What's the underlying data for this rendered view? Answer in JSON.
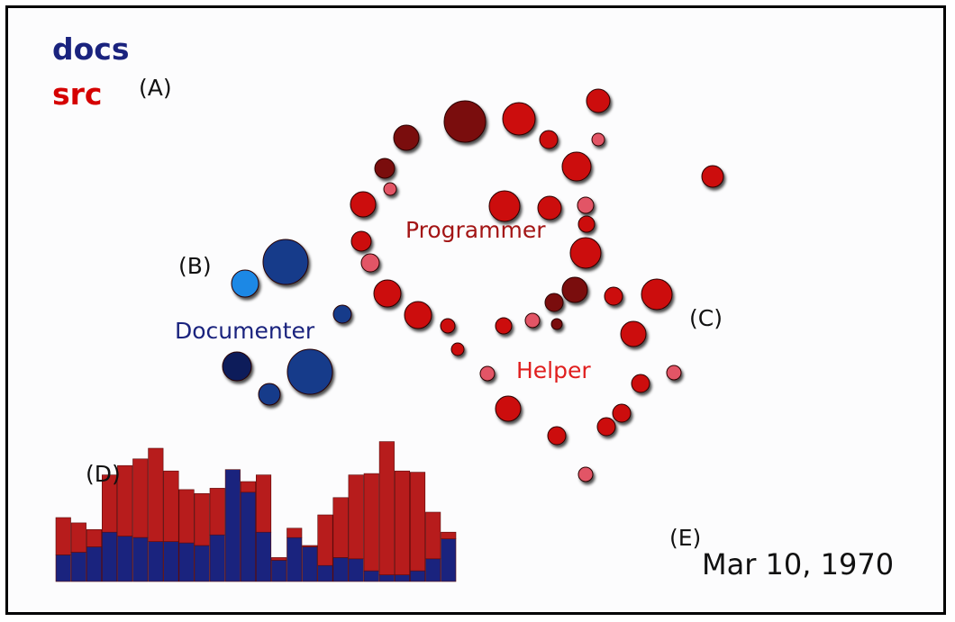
{
  "legend": {
    "items": [
      {
        "label": "docs",
        "color": "#1a237e"
      },
      {
        "label": "src",
        "color": "#d50000"
      }
    ]
  },
  "markers": {
    "a": "(A)",
    "b": "(B)",
    "c": "(C)",
    "d": "(D)",
    "e": "(E)"
  },
  "clusters": {
    "programmer": {
      "label": "Programmer",
      "color": "#a31515"
    },
    "documenter": {
      "label": "Documenter",
      "color": "#1a237e"
    },
    "helper": {
      "label": "Helper",
      "color": "#e01e1e"
    }
  },
  "date": "Mar 10, 1970",
  "colors": {
    "src": "#cc1111",
    "src_dark": "#7a0f0f",
    "src_light": "#e25566",
    "docs": "#123a8a",
    "docs_dark": "#0a1f5a",
    "docs_light": "#1e88e5",
    "bar_src": "#b71c1c",
    "bar_docs": "#1a237e"
  },
  "chart_data": {
    "type": "bar",
    "stacked": true,
    "series": [
      {
        "name": "docs",
        "values": [
          0.2,
          0.22,
          0.26,
          0.37,
          0.34,
          0.33,
          0.3,
          0.3,
          0.29,
          0.27,
          0.35,
          0.84,
          0.67,
          0.37,
          0.16,
          0.33,
          0.26,
          0.12,
          0.18,
          0.17,
          0.08,
          0.05,
          0.05,
          0.08,
          0.17,
          0.32
        ]
      },
      {
        "name": "src",
        "values": [
          0.28,
          0.22,
          0.13,
          0.43,
          0.53,
          0.59,
          0.7,
          0.53,
          0.4,
          0.39,
          0.35,
          0.0,
          0.08,
          0.43,
          0.02,
          0.07,
          0.01,
          0.38,
          0.45,
          0.63,
          0.73,
          1.0,
          0.78,
          0.74,
          0.35,
          0.05
        ]
      }
    ]
  }
}
